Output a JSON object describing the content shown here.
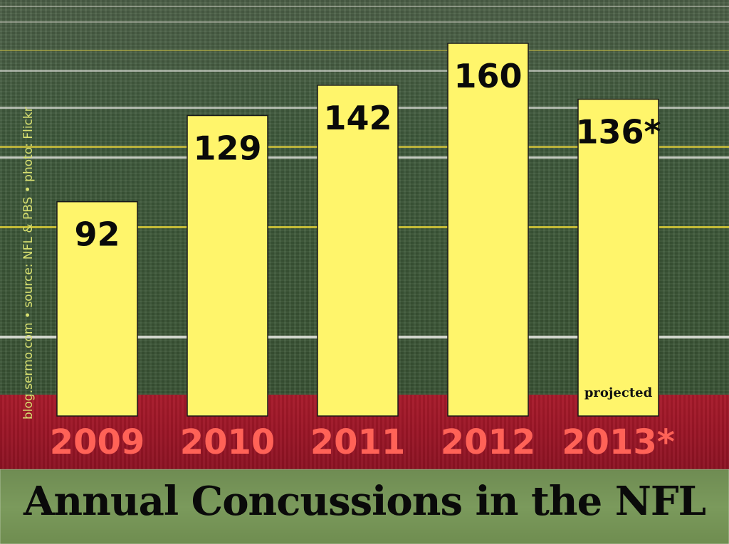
{
  "credit": "blog.sermo.com • source: NFL & PBS • photo: Flickr",
  "colors": {
    "bar": "#fff56b",
    "year_label": "#ff6257",
    "red_band": "#9a1526"
  },
  "chart_data": {
    "type": "bar",
    "title": "Annual Concussions in the NFL",
    "categories": [
      "2009",
      "2010",
      "2011",
      "2012",
      "2013*"
    ],
    "values": [
      92,
      129,
      142,
      160,
      136
    ],
    "value_labels": [
      "92",
      "129",
      "142",
      "160",
      "136*"
    ],
    "annotations": [
      {
        "category": "2013*",
        "text": "projected"
      }
    ],
    "xlabel": "",
    "ylabel": "",
    "ylim": [
      0,
      167
    ],
    "grid": false
  }
}
